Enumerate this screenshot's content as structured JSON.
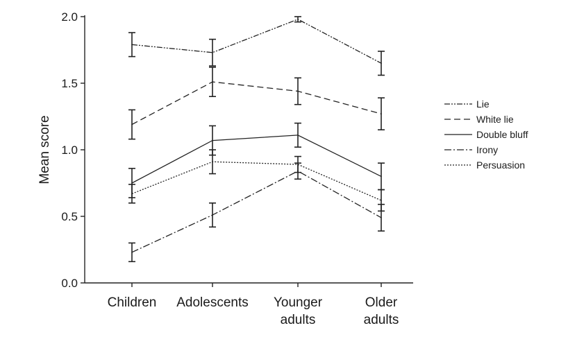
{
  "chart_data": {
    "type": "line",
    "ylabel": "Mean score",
    "xlabel": "",
    "ylim": [
      0,
      2.0
    ],
    "yticks": [
      "0.0",
      "0.5",
      "1.0",
      "1.5",
      "2.0"
    ],
    "categories": [
      [
        "Children"
      ],
      [
        "Adolescents"
      ],
      [
        "Younger",
        "adults"
      ],
      [
        "Older",
        "adults"
      ]
    ],
    "legend_position": "right",
    "series": [
      {
        "name": "Lie",
        "values": [
          1.79,
          1.73,
          1.98,
          1.65
        ],
        "err": [
          0.09,
          0.1,
          0.02,
          0.09
        ],
        "dash": "8 2 2 2 2 2"
      },
      {
        "name": "White lie",
        "values": [
          1.19,
          1.51,
          1.44,
          1.27
        ],
        "err": [
          0.11,
          0.11,
          0.1,
          0.12
        ],
        "dash": "9 5"
      },
      {
        "name": "Double bluff",
        "values": [
          0.75,
          1.07,
          1.11,
          0.8
        ],
        "err": [
          0.11,
          0.11,
          0.09,
          0.1
        ],
        "dash": ""
      },
      {
        "name": "Irony",
        "values": [
          0.23,
          0.51,
          0.84,
          0.49
        ],
        "err": [
          0.07,
          0.09,
          0.06,
          0.1
        ],
        "dash": "10 3 2 3"
      },
      {
        "name": "Persuasion",
        "values": [
          0.67,
          0.91,
          0.89,
          0.62
        ],
        "err": [
          0.07,
          0.09,
          0.06,
          0.08
        ],
        "dash": "2 2"
      }
    ]
  }
}
